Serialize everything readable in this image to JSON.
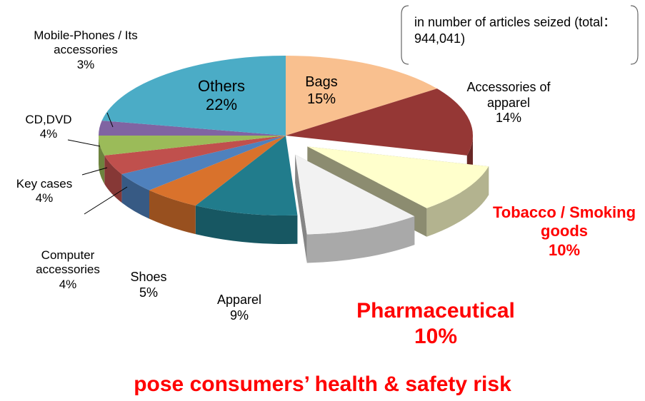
{
  "chart_data": {
    "type": "pie",
    "note": "in number of articles seized (total：944,041)",
    "caption": "pose consumers’ health & safety risk",
    "categories": [
      "Bags",
      "Accessories of apparel",
      "Tobacco / Smoking goods",
      "Pharmaceutical",
      "Apparel",
      "Shoes",
      "Computer accessories",
      "Key cases",
      "CD,DVD",
      "Mobile-Phones / Its accessories",
      "Others"
    ],
    "values": [
      15,
      14,
      10,
      10,
      9,
      5,
      4,
      4,
      4,
      3,
      22
    ],
    "value_labels": [
      "15%",
      "14%",
      "10%",
      "10%",
      "9%",
      "5%",
      "4%",
      "4%",
      "4%",
      "3%",
      "22%"
    ],
    "colors": [
      "#f9c08f",
      "#953735",
      "#ffffcc",
      "#f2f2f2",
      "#217c8c",
      "#d9722c",
      "#4f81bd",
      "#c0504d",
      "#9bbb59",
      "#8064a2",
      "#4bacc6"
    ],
    "label_colors": [
      "#000000",
      "#000000",
      "#ff0000",
      "#ff0000",
      "#000000",
      "#000000",
      "#000000",
      "#000000",
      "#000000",
      "#000000",
      "#000000"
    ],
    "exploded": [
      false,
      false,
      true,
      true,
      false,
      false,
      false,
      false,
      false,
      false,
      false
    ]
  }
}
